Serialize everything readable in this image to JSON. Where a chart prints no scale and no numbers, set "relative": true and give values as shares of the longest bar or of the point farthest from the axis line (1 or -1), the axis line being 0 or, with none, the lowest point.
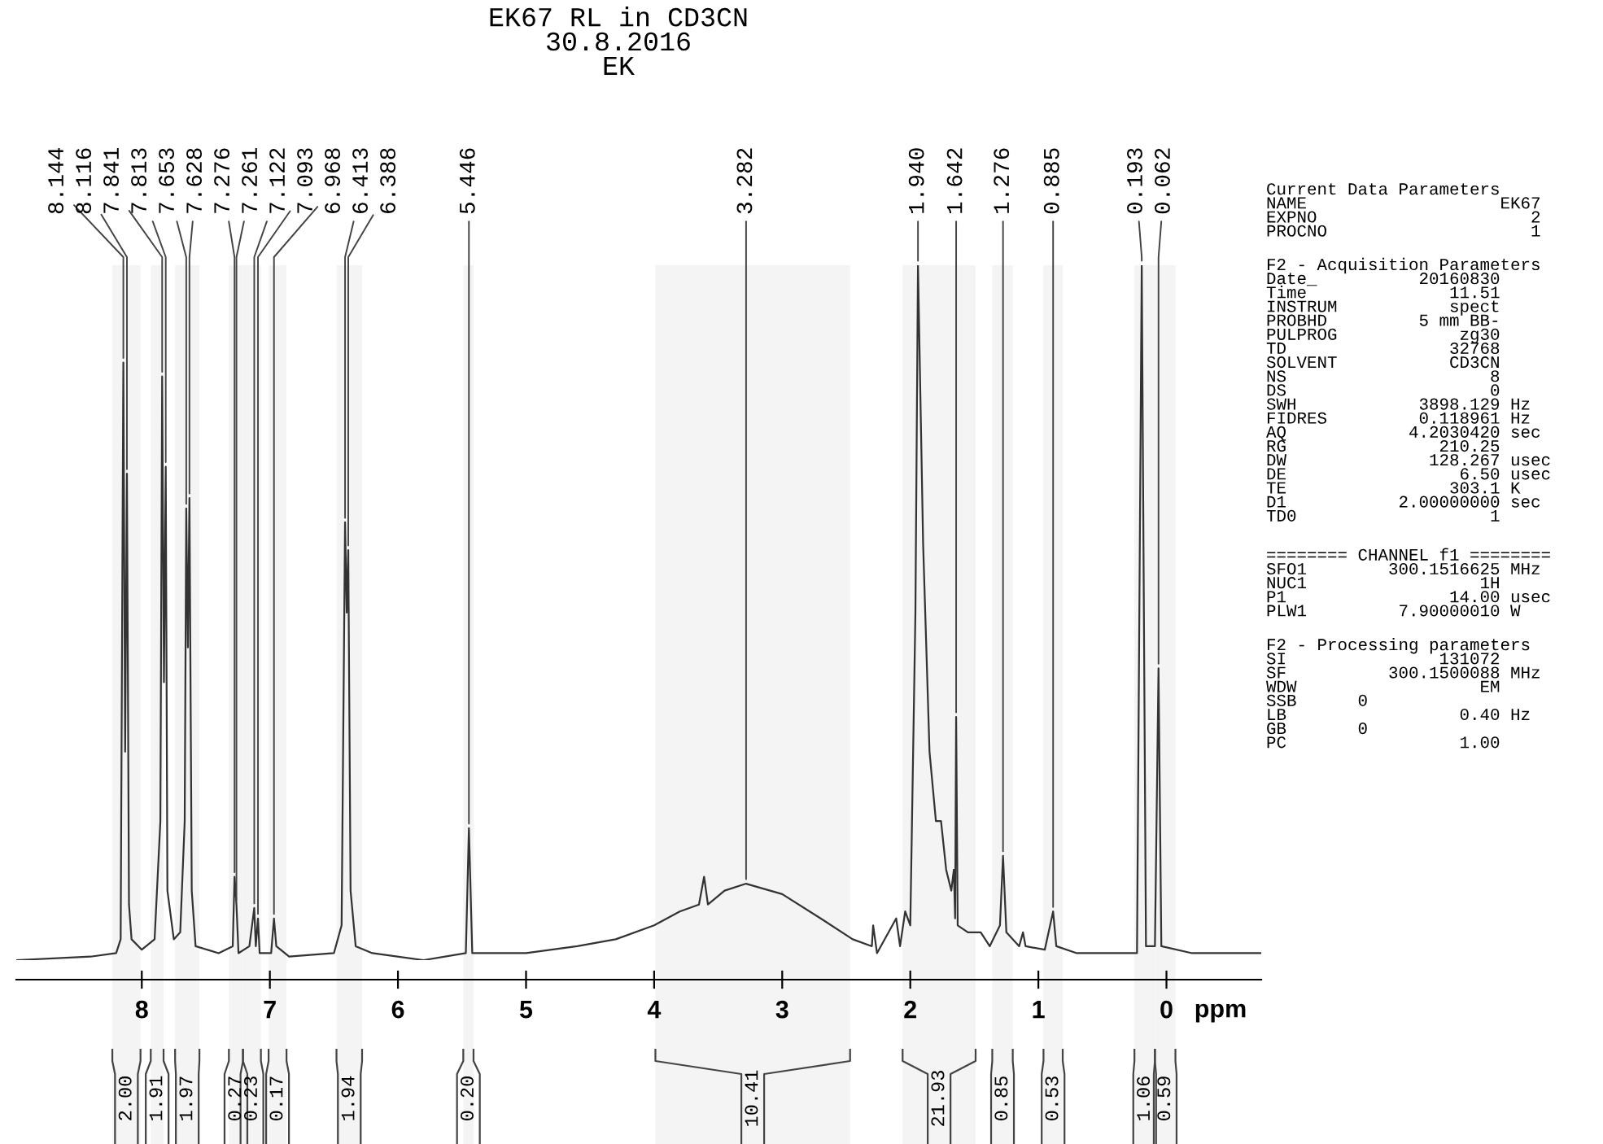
{
  "chart_data": {
    "type": "line",
    "relative": true,
    "title": "EK67 RL in CD3CN\n30.8.2016\nEK",
    "xlabel": "ppm",
    "xlim": [
      8.98,
      -0.74
    ],
    "xticks": [
      8,
      7,
      6,
      5,
      4,
      3,
      2,
      1,
      0
    ],
    "series": [
      {
        "color": "#333333",
        "x": [
          8.98,
          8.4,
          8.2,
          8.165,
          8.144,
          8.13,
          8.116,
          8.1,
          8.08,
          8.0,
          7.9,
          7.855,
          7.841,
          7.827,
          7.813,
          7.8,
          7.75,
          7.7,
          7.665,
          7.653,
          7.64,
          7.628,
          7.61,
          7.58,
          7.4,
          7.29,
          7.276,
          7.261,
          7.245,
          7.16,
          7.122,
          7.11,
          7.093,
          7.08,
          6.99,
          6.968,
          6.95,
          6.85,
          6.5,
          6.44,
          6.413,
          6.4,
          6.388,
          6.37,
          6.33,
          6.2,
          5.8,
          5.47,
          5.446,
          5.42,
          5.0,
          4.6,
          4.3,
          4.0,
          3.8,
          3.65,
          3.61,
          3.58,
          3.45,
          3.282,
          3.0,
          2.7,
          2.45,
          2.3,
          2.29,
          2.26,
          2.11,
          2.08,
          2.04,
          2.0,
          1.96,
          1.94,
          1.9,
          1.85,
          1.8,
          1.76,
          1.72,
          1.68,
          1.66,
          1.65,
          1.642,
          1.63,
          1.55,
          1.45,
          1.38,
          1.3,
          1.276,
          1.25,
          1.15,
          1.12,
          1.1,
          0.95,
          0.885,
          0.86,
          0.7,
          0.23,
          0.193,
          0.16,
          0.09,
          0.062,
          0.04,
          -0.2,
          -0.74
        ],
        "values": [
          0,
          0.005,
          0.01,
          0.03,
          0.86,
          0.3,
          0.7,
          0.08,
          0.03,
          0.015,
          0.03,
          0.2,
          0.84,
          0.4,
          0.71,
          0.1,
          0.03,
          0.04,
          0.2,
          0.65,
          0.45,
          0.665,
          0.1,
          0.02,
          0.01,
          0.02,
          0.12,
          0.08,
          0.01,
          0.02,
          0.075,
          0.02,
          0.06,
          0.01,
          0.01,
          0.06,
          0.02,
          0.005,
          0.01,
          0.05,
          0.63,
          0.5,
          0.59,
          0.1,
          0.02,
          0.01,
          0,
          0.01,
          0.19,
          0.01,
          0.01,
          0.02,
          0.03,
          0.05,
          0.07,
          0.08,
          0.12,
          0.08,
          0.1,
          0.11,
          0.095,
          0.06,
          0.03,
          0.02,
          0.05,
          0.01,
          0.06,
          0.02,
          0.07,
          0.05,
          0.5,
          1.0,
          0.6,
          0.3,
          0.2,
          0.2,
          0.13,
          0.1,
          0.13,
          0.06,
          0.35,
          0.05,
          0.04,
          0.04,
          0.02,
          0.05,
          0.15,
          0.04,
          0.02,
          0.04,
          0.02,
          0.015,
          0.07,
          0.02,
          0.01,
          0.01,
          1.0,
          0.02,
          0.02,
          0.42,
          0.02,
          0.01,
          0.01
        ]
      }
    ],
    "bands": [
      {
        "axis": "x",
        "from": 8.23,
        "to": 8.01,
        "label": "2.00"
      },
      {
        "axis": "x",
        "from": 7.93,
        "to": 7.83,
        "label": "1.91"
      },
      {
        "axis": "x",
        "from": 7.74,
        "to": 7.55,
        "label": "1.97"
      },
      {
        "axis": "x",
        "from": 7.32,
        "to": 7.21,
        "label": "0.27"
      },
      {
        "axis": "x",
        "from": 7.21,
        "to": 7.07,
        "label": "0.23"
      },
      {
        "axis": "x",
        "from": 7.01,
        "to": 6.87,
        "label": "0.17"
      },
      {
        "axis": "x",
        "from": 6.48,
        "to": 6.28,
        "label": "1.94"
      },
      {
        "axis": "x",
        "from": 5.49,
        "to": 5.41,
        "label": "0.20"
      },
      {
        "axis": "x",
        "from": 3.99,
        "to": 2.47,
        "label": "10.41"
      },
      {
        "axis": "x",
        "from": 2.06,
        "to": 1.49,
        "label": "21.93"
      },
      {
        "axis": "x",
        "from": 1.36,
        "to": 1.2,
        "label": "0.85"
      },
      {
        "axis": "x",
        "from": 0.96,
        "to": 0.81,
        "label": "0.53"
      },
      {
        "axis": "x",
        "from": 0.25,
        "to": 0.09,
        "label": "1.06"
      },
      {
        "axis": "x",
        "from": 0.09,
        "to": -0.07,
        "label": "0.59"
      }
    ],
    "annotations": [
      {
        "text": "8.144",
        "x": 8.144,
        "y": 0.86
      },
      {
        "text": "8.116",
        "x": 8.116,
        "y": 0.7
      },
      {
        "text": "7.841",
        "x": 7.841,
        "y": 0.84
      },
      {
        "text": "7.813",
        "x": 7.813,
        "y": 0.71
      },
      {
        "text": "7.653",
        "x": 7.653,
        "y": 0.65
      },
      {
        "text": "7.628",
        "x": 7.628,
        "y": 0.665
      },
      {
        "text": "7.276",
        "x": 7.276,
        "y": 0.12
      },
      {
        "text": "7.261",
        "x": 7.261,
        "y": 0.08
      },
      {
        "text": "7.122",
        "x": 7.122,
        "y": 0.075
      },
      {
        "text": "7.093",
        "x": 7.093,
        "y": 0.06
      },
      {
        "text": "6.968",
        "x": 6.968,
        "y": 0.06
      },
      {
        "text": "6.413",
        "x": 6.413,
        "y": 0.63
      },
      {
        "text": "6.388",
        "x": 6.388,
        "y": 0.59
      },
      {
        "text": "5.446",
        "x": 5.446,
        "y": 0.19
      },
      {
        "text": "3.282",
        "x": 3.282,
        "y": 0.11
      },
      {
        "text": "1.940",
        "x": 1.94,
        "y": 1.0
      },
      {
        "text": "1.642",
        "x": 1.642,
        "y": 0.35
      },
      {
        "text": "1.276",
        "x": 1.276,
        "y": 0.15
      },
      {
        "text": "0.885",
        "x": 0.885,
        "y": 0.07
      },
      {
        "text": "0.193",
        "x": 0.193,
        "y": 1.0
      },
      {
        "text": "0.062",
        "x": 0.062,
        "y": 0.42
      },
      "Current Data Parameters\nNAME                   EK67\nEXPNO                     2\nPROCNO                    1",
      "F2 - Acquisition Parameters\nDate_          20160830\nTime              11.51\nINSTRUM           spect\nPROBHD         5 mm BB-\nPULPROG            zg30\nTD                32768\nSOLVENT           CD3CN\nNS                    8\nDS                    0\nSWH            3898.129 Hz\nFIDRES         0.118961 Hz\nAQ            4.2030420 sec\nRG               210.25\nDW              128.267 usec\nDE                 6.50 usec\nTE                303.1 K\nD1           2.00000000 sec\nTD0                   1",
      "======== CHANNEL f1 ========\nSFO1        300.1516625 MHz\nNUC1                 1H\nP1                14.00 usec\nPLW1         7.90000010 W",
      "F2 - Processing parameters\nSI               131072\nSF          300.1500088 MHz\nWDW                  EM\nSSB      0\nLB                 0.40 Hz\nGB       0\nPC                 1.00"
    ]
  }
}
